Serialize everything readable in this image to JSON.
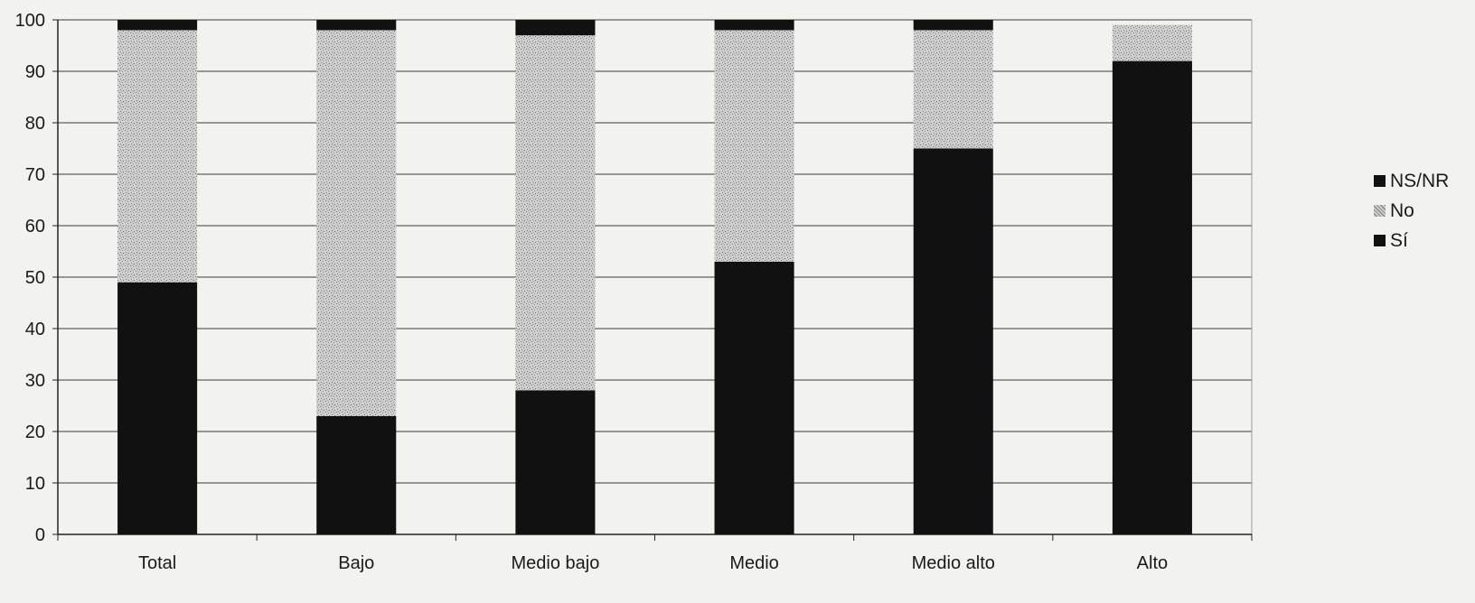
{
  "chart_data": {
    "type": "bar",
    "stacked": true,
    "title": "",
    "xlabel": "",
    "ylabel": "",
    "ylim": [
      0,
      100
    ],
    "yticks": [
      0,
      10,
      20,
      30,
      40,
      50,
      60,
      70,
      80,
      90,
      100
    ],
    "grid": true,
    "legend_position": "right",
    "categories": [
      "Total",
      "Bajo",
      "Medio bajo",
      "Medio",
      "Medio alto",
      "Alto"
    ],
    "series": [
      {
        "name": "Sí",
        "values": [
          49,
          23,
          28,
          53,
          75,
          92
        ],
        "color": "#111111",
        "pattern": "solid"
      },
      {
        "name": "No",
        "values": [
          49,
          75,
          69,
          45,
          23,
          7
        ],
        "color": "#bdbdbd",
        "pattern": "stipple"
      },
      {
        "name": "NS/NR",
        "values": [
          2,
          2,
          3,
          2,
          2,
          0
        ],
        "color": "#111111",
        "pattern": "solid"
      }
    ],
    "legend": [
      "NS/NR",
      "No",
      "Sí"
    ]
  }
}
